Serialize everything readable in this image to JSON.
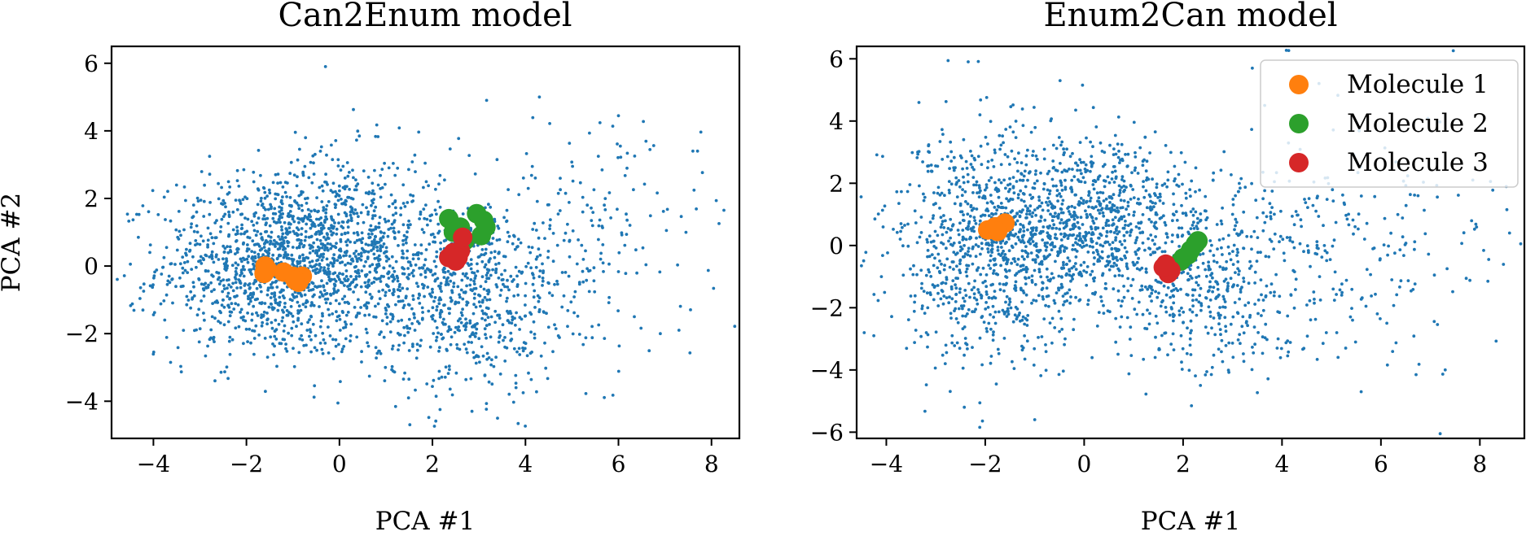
{
  "chart_data": [
    {
      "type": "scatter",
      "title": "Can2Enum model",
      "xlabel": "PCA #1",
      "ylabel": "PCA #2",
      "xlim": [
        -4.9,
        8.6
      ],
      "ylim": [
        -5.1,
        6.5
      ],
      "xticks": [
        -4,
        -2,
        0,
        2,
        4,
        6,
        8
      ],
      "yticks": [
        -4,
        -2,
        0,
        2,
        4,
        6
      ],
      "xtick_labels": [
        "−4",
        "−2",
        "0",
        "2",
        "4",
        "6",
        "8"
      ],
      "ytick_labels": [
        "−4",
        "−2",
        "0",
        "2",
        "4",
        "6"
      ],
      "background": {
        "color": "#1f77b4",
        "count": 2600,
        "clusters": [
          {
            "cx": -1.6,
            "cy": 0.0,
            "sx": 1.15,
            "sy": 1.35,
            "weight": 0.4
          },
          {
            "cx": 0.2,
            "cy": 0.6,
            "sx": 1.0,
            "sy": 1.35,
            "weight": 0.27
          },
          {
            "cx": 2.7,
            "cy": -0.9,
            "sx": 1.0,
            "sy": 1.45,
            "weight": 0.25
          },
          {
            "cx": 5.2,
            "cy": 0.6,
            "sx": 1.3,
            "sy": 1.8,
            "weight": 0.08
          }
        ],
        "outliers": [
          [
            7.6,
            3.4
          ],
          [
            7.7,
            3.4
          ],
          [
            -0.3,
            5.9
          ],
          [
            4.3,
            5.0
          ],
          [
            3.4,
            -4.5
          ],
          [
            7.3,
            -1.9
          ],
          [
            6.9,
            -2.0
          ]
        ]
      },
      "series": [
        {
          "name": "Molecule 1",
          "color": "#ff7f0e",
          "x": [
            -1.6,
            -1.62,
            -1.2,
            -1.0,
            -0.8,
            -0.88,
            -0.95,
            -1.55
          ],
          "y": [
            0.0,
            -0.22,
            -0.18,
            -0.3,
            -0.3,
            -0.48,
            -0.42,
            -0.1
          ]
        },
        {
          "name": "Molecule 2",
          "color": "#2ca02c",
          "x": [
            2.35,
            2.6,
            2.95,
            3.15,
            3.05,
            2.45,
            2.7,
            3.1
          ],
          "y": [
            1.4,
            1.15,
            1.55,
            1.15,
            0.9,
            1.0,
            0.75,
            1.35
          ]
        },
        {
          "name": "Molecule 3",
          "color": "#d62728",
          "x": [
            2.35,
            2.5,
            2.6,
            2.65,
            2.45,
            2.55
          ],
          "y": [
            0.25,
            0.15,
            0.45,
            0.85,
            0.4,
            0.25
          ]
        }
      ]
    },
    {
      "type": "scatter",
      "title": "Enum2Can model",
      "xlabel": "PCA #1",
      "ylabel": "",
      "xlim": [
        -4.6,
        8.9
      ],
      "ylim": [
        -6.2,
        6.4
      ],
      "xticks": [
        -4,
        -2,
        0,
        2,
        4,
        6,
        8
      ],
      "yticks": [
        -6,
        -4,
        -2,
        0,
        2,
        4,
        6
      ],
      "xtick_labels": [
        "−4",
        "−2",
        "0",
        "2",
        "4",
        "6",
        "8"
      ],
      "ytick_labels": [
        "−6",
        "−4",
        "−2",
        "0",
        "2",
        "4",
        "6"
      ],
      "background": {
        "color": "#1f77b4",
        "count": 2400,
        "clusters": [
          {
            "cx": -2.0,
            "cy": 0.0,
            "sx": 1.0,
            "sy": 1.9,
            "weight": 0.38
          },
          {
            "cx": 0.2,
            "cy": 0.7,
            "sx": 1.0,
            "sy": 1.35,
            "weight": 0.32
          },
          {
            "cx": 2.6,
            "cy": -1.0,
            "sx": 1.15,
            "sy": 1.5,
            "weight": 0.22
          },
          {
            "cx": 5.8,
            "cy": 0.2,
            "sx": 1.6,
            "sy": 2.1,
            "weight": 0.08
          }
        ],
        "outliers": [
          [
            3.4,
            5.7
          ],
          [
            8.6,
            0.4
          ],
          [
            -4.1,
            -1.0
          ],
          [
            -1.0,
            -5.6
          ],
          [
            5.6,
            -4.7
          ],
          [
            7.3,
            -4.0
          ]
        ]
      },
      "series": [
        {
          "name": "Molecule 1",
          "color": "#ff7f0e",
          "x": [
            -1.95,
            -1.8,
            -1.6,
            -1.75
          ],
          "y": [
            0.5,
            0.6,
            0.72,
            0.45
          ]
        },
        {
          "name": "Molecule 2",
          "color": "#2ca02c",
          "x": [
            2.0,
            2.15,
            2.25,
            2.3,
            2.1,
            1.95
          ],
          "y": [
            -0.4,
            -0.15,
            0.05,
            0.15,
            -0.3,
            -0.5
          ]
        },
        {
          "name": "Molecule 3",
          "color": "#d62728",
          "x": [
            1.65,
            1.75,
            1.7,
            1.6
          ],
          "y": [
            -0.6,
            -0.8,
            -0.9,
            -0.7
          ]
        }
      ],
      "legend": {
        "placement": "top-right",
        "entries": [
          "Molecule 1",
          "Molecule 2",
          "Molecule 3"
        ]
      }
    }
  ]
}
